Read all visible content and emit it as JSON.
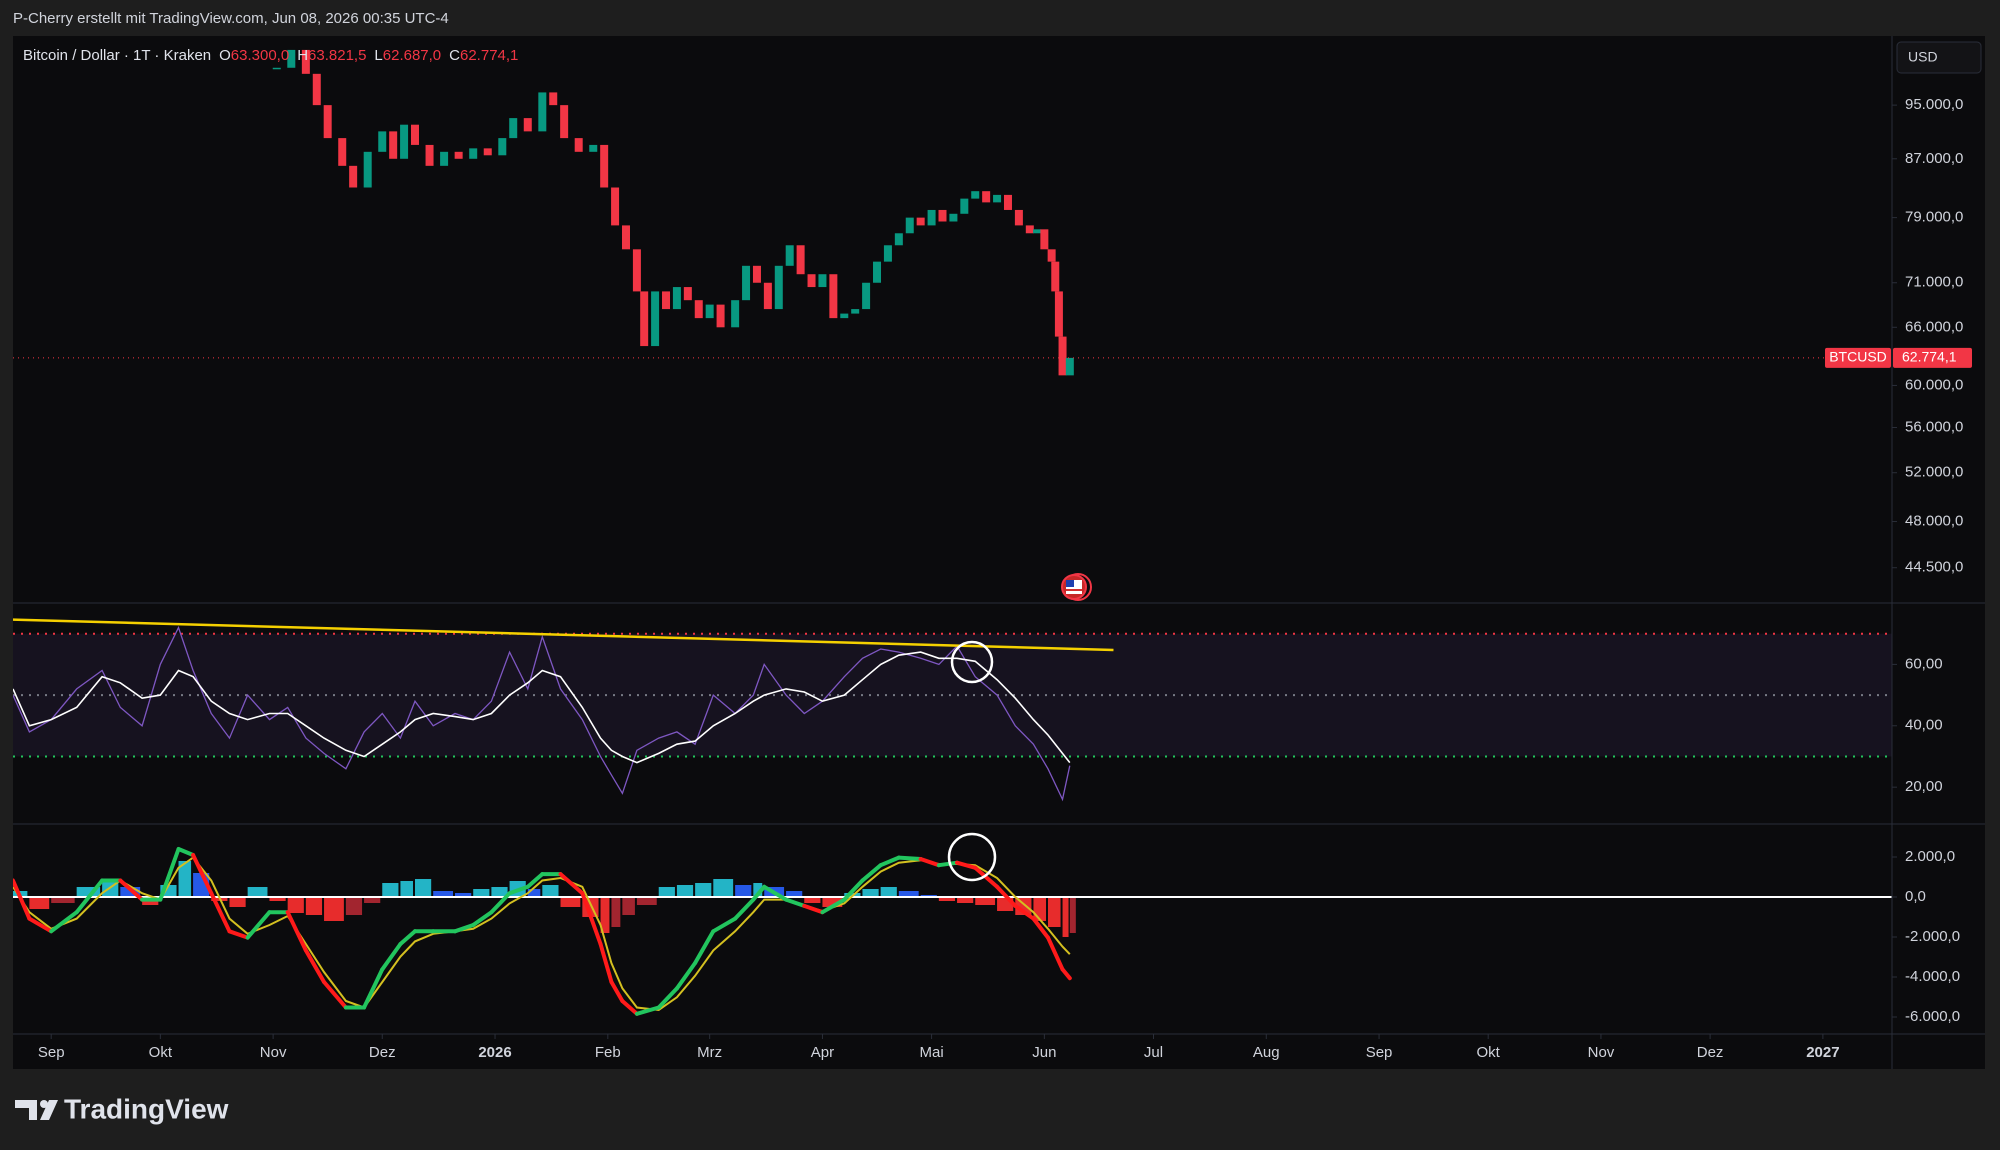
{
  "header": {
    "text": "P-Cherry erstellt mit TradingView.com, Jun 08, 2026 00:35 UTC-4"
  },
  "symbol": {
    "name": "Bitcoin / Dollar · 1T · Kraken",
    "ohlc": [
      {
        "key": "O",
        "value": "63.300,0"
      },
      {
        "key": "H",
        "value": "63.821,5"
      },
      {
        "key": "L",
        "value": "62.687,0"
      },
      {
        "key": "C",
        "value": "62.774,1"
      }
    ]
  },
  "currency": "USD",
  "logo": "TradingView",
  "chart_data": [
    {
      "type": "candlestick",
      "xlim": [
        -10.5,
        506
      ],
      "xticks": [
        {
          "value": 0,
          "label": "Sep"
        },
        {
          "value": 30,
          "label": "Okt"
        },
        {
          "value": 61,
          "label": "Nov"
        },
        {
          "value": 91,
          "label": "Dez"
        },
        {
          "value": 122,
          "label": "2026"
        },
        {
          "value": 153,
          "label": "Feb"
        },
        {
          "value": 181,
          "label": "Mrz"
        },
        {
          "value": 212,
          "label": "Apr"
        },
        {
          "value": 242,
          "label": "Mai"
        },
        {
          "value": 273,
          "label": "Jun"
        },
        {
          "value": 303,
          "label": "Jul"
        },
        {
          "value": 334,
          "label": "Aug"
        },
        {
          "value": 365,
          "label": "Sep"
        },
        {
          "value": 395,
          "label": "Okt"
        },
        {
          "value": 426,
          "label": "Nov"
        },
        {
          "value": 456,
          "label": "Dez"
        },
        {
          "value": 487,
          "label": "2027"
        }
      ],
      "ylim": [
        42000,
        106400
      ],
      "log": true,
      "yticks": [
        {
          "value": 95000,
          "label": "95.000,0"
        },
        {
          "value": 87000,
          "label": "87.000,0"
        },
        {
          "value": 79000,
          "label": "79.000,0"
        },
        {
          "value": 71000,
          "label": "71.000,0"
        },
        {
          "value": 66000,
          "label": "66.000,0"
        },
        {
          "value": 60000,
          "label": "60.000,0"
        },
        {
          "value": 56000,
          "label": "56.000,0"
        },
        {
          "value": 52000,
          "label": "52.000,0"
        },
        {
          "value": 48000,
          "label": "48.000,0"
        },
        {
          "value": 44500,
          "label": "44.500,0"
        }
      ],
      "series": [
        {
          "name": "BTCUSD",
          "color_up": "#089981",
          "color_down": "#f23645",
          "x": [
            62,
            66,
            70,
            73,
            76,
            80,
            83,
            87,
            91,
            94,
            97,
            100,
            104,
            108,
            112,
            116,
            120,
            124,
            127,
            131,
            135,
            138,
            141,
            145,
            149,
            152,
            155,
            158,
            161,
            163,
            166,
            169,
            172,
            175,
            178,
            181,
            184,
            188,
            191,
            194,
            197,
            200,
            203,
            206,
            209,
            212,
            215,
            218,
            221,
            224,
            227,
            230,
            233,
            236,
            239,
            242,
            245,
            248,
            251,
            254,
            257,
            260,
            263,
            266,
            269,
            271,
            273,
            275,
            276,
            277,
            278,
            280
          ],
          "values": [
            101000,
            104000,
            100000,
            95000,
            90000,
            86000,
            83000,
            88000,
            91000,
            87000,
            92000,
            89000,
            86000,
            88000,
            87000,
            88500,
            87500,
            90000,
            93000,
            91000,
            97000,
            95000,
            90000,
            88000,
            89000,
            83000,
            78000,
            75000,
            70000,
            64000,
            70000,
            68000,
            70500,
            69000,
            67000,
            68500,
            66000,
            69000,
            73000,
            71000,
            68000,
            73000,
            75500,
            72000,
            70500,
            72000,
            67000,
            67500,
            68000,
            71000,
            73500,
            75500,
            77000,
            79000,
            78000,
            80000,
            78500,
            79500,
            81500,
            82500,
            81000,
            82000,
            80000,
            78000,
            77000,
            77500,
            75000,
            73500,
            70000,
            65000,
            61000,
            62774.1
          ]
        }
      ],
      "last_price": {
        "value": 62774.1,
        "label": "62.774,1",
        "color": "#f23645"
      }
    },
    {
      "type": "line",
      "ylim": [
        8,
        80
      ],
      "yticks": [
        {
          "value": 60,
          "label": "60,00"
        },
        {
          "value": 40,
          "label": "40,00"
        },
        {
          "value": 20,
          "label": "20,00"
        }
      ],
      "levels": [
        {
          "value": 70,
          "color": "#f23645"
        },
        {
          "value": 50,
          "color": "#787b86"
        },
        {
          "value": 30,
          "color": "#22c55e"
        }
      ],
      "band": [
        30,
        70
      ],
      "band_color": "#7e57c2",
      "x": [
        -10.5,
        -6,
        0,
        7,
        14,
        19,
        25,
        30,
        35,
        39,
        44,
        49,
        54,
        60,
        65,
        70,
        75,
        81,
        86,
        91,
        96,
        100,
        105,
        111,
        116,
        121,
        126,
        131,
        135,
        140,
        146,
        151,
        154,
        157,
        161,
        167,
        172,
        177,
        182,
        188,
        193,
        196,
        202,
        207,
        212,
        218,
        223,
        228,
        233,
        239,
        244,
        249,
        254,
        260,
        265,
        270,
        274,
        278,
        280
      ],
      "series": [
        {
          "color": "#7e57c2",
          "values": [
            50,
            38,
            42,
            52,
            58,
            46,
            40,
            60,
            72,
            58,
            44,
            36,
            50,
            42,
            46,
            36,
            31,
            26,
            38,
            44,
            36,
            48,
            40,
            44,
            42,
            48,
            64,
            52,
            69,
            52,
            42,
            30,
            24,
            18,
            32,
            36,
            38,
            34,
            50,
            44,
            50,
            60,
            50,
            44,
            48,
            56,
            62,
            65,
            64,
            62,
            60,
            66,
            56,
            50,
            40,
            34,
            26,
            16,
            27
          ]
        },
        {
          "color": "#ffffff",
          "values": [
            52,
            40,
            42,
            46,
            56,
            54,
            49,
            50,
            58,
            56,
            48,
            44,
            42,
            44,
            44,
            40,
            36,
            32,
            30,
            34,
            38,
            42,
            44,
            43,
            42,
            44,
            50,
            54,
            58,
            56,
            46,
            36,
            32,
            30,
            28,
            31,
            34,
            35,
            40,
            44,
            48,
            50,
            52,
            51,
            48,
            50,
            55,
            60,
            63,
            64,
            62,
            62,
            61,
            55,
            49,
            42,
            37,
            31,
            28
          ]
        }
      ],
      "trendline": {
        "x": [
          -10.5,
          292
        ],
        "values": [
          74.6,
          64.7
        ],
        "color": "#f5d000"
      }
    },
    {
      "type": "macd",
      "ylim": [
        -6850,
        3650
      ],
      "yticks": [
        {
          "value": 2000,
          "label": "2.000,0"
        },
        {
          "value": 0,
          "label": "0,0"
        },
        {
          "value": -2000,
          "label": "-2.000,0"
        },
        {
          "value": -4000,
          "label": "-4.000,0"
        },
        {
          "value": -6000,
          "label": "-6.000,0"
        }
      ],
      "x": [
        -10.5,
        -6,
        0,
        7,
        14,
        19,
        25,
        30,
        35,
        39,
        44,
        49,
        54,
        60,
        65,
        70,
        75,
        81,
        86,
        91,
        96,
        100,
        105,
        111,
        116,
        121,
        126,
        131,
        135,
        140,
        146,
        151,
        154,
        157,
        161,
        167,
        172,
        177,
        182,
        188,
        193,
        196,
        202,
        207,
        212,
        218,
        223,
        228,
        233,
        239,
        244,
        249,
        254,
        260,
        265,
        270,
        274,
        278,
        280
      ],
      "histogram": [
        300,
        -600,
        -300,
        500,
        800,
        500,
        -400,
        600,
        1800,
        1200,
        -200,
        -500,
        500,
        -200,
        -800,
        -900,
        -1200,
        -900,
        -300,
        700,
        800,
        900,
        300,
        200,
        400,
        500,
        800,
        400,
        600,
        -500,
        -1000,
        -1800,
        -1500,
        -900,
        -400,
        500,
        600,
        700,
        900,
        600,
        700,
        500,
        300,
        -300,
        -500,
        200,
        400,
        500,
        300,
        100,
        -200,
        -300,
        -400,
        -700,
        -900,
        -1200,
        -1500,
        -2000,
        -1800
      ],
      "histogram_colors": [
        "#26c6da",
        "#2962ff",
        "#ff3030",
        "#b22833"
      ],
      "series": [
        {
          "color_up": "#22c55e",
          "color_down": "#ff1a1a",
          "values": [
            825,
            -1080,
            -1715,
            -760,
            825,
            825,
            -130,
            -130,
            2400,
            2100,
            190,
            -1715,
            -2030,
            -760,
            -760,
            -2670,
            -4250,
            -5525,
            -5525,
            -3620,
            -2350,
            -1715,
            -1715,
            -1715,
            -1400,
            -760,
            190,
            510,
            1145,
            1145,
            190,
            -2350,
            -4250,
            -5200,
            -5840,
            -5525,
            -4570,
            -3300,
            -1715,
            -1080,
            -130,
            510,
            -130,
            -445,
            -760,
            -130,
            825,
            1590,
            1970,
            1900,
            1590,
            1715,
            1460,
            510,
            -445,
            -1080,
            -2030,
            -3620,
            -4060
          ]
        },
        {
          "color": "#d4c020",
          "values": [
            510,
            -760,
            -1590,
            -1080,
            190,
            825,
            190,
            -130,
            1460,
            1970,
            825,
            -1080,
            -1840,
            -1400,
            -950,
            -2350,
            -3750,
            -5200,
            -5525,
            -4250,
            -2985,
            -2220,
            -1840,
            -1715,
            -1590,
            -1080,
            -320,
            190,
            825,
            950,
            510,
            -1400,
            -3300,
            -4570,
            -5525,
            -5650,
            -5015,
            -3940,
            -2670,
            -1715,
            -760,
            -130,
            -130,
            -445,
            -700,
            -320,
            510,
            1270,
            1715,
            1840,
            1650,
            1650,
            1590,
            950,
            0,
            -760,
            -1590,
            -2480,
            -2860
          ]
        }
      ],
      "zero_line_color": "#ffffff"
    }
  ]
}
